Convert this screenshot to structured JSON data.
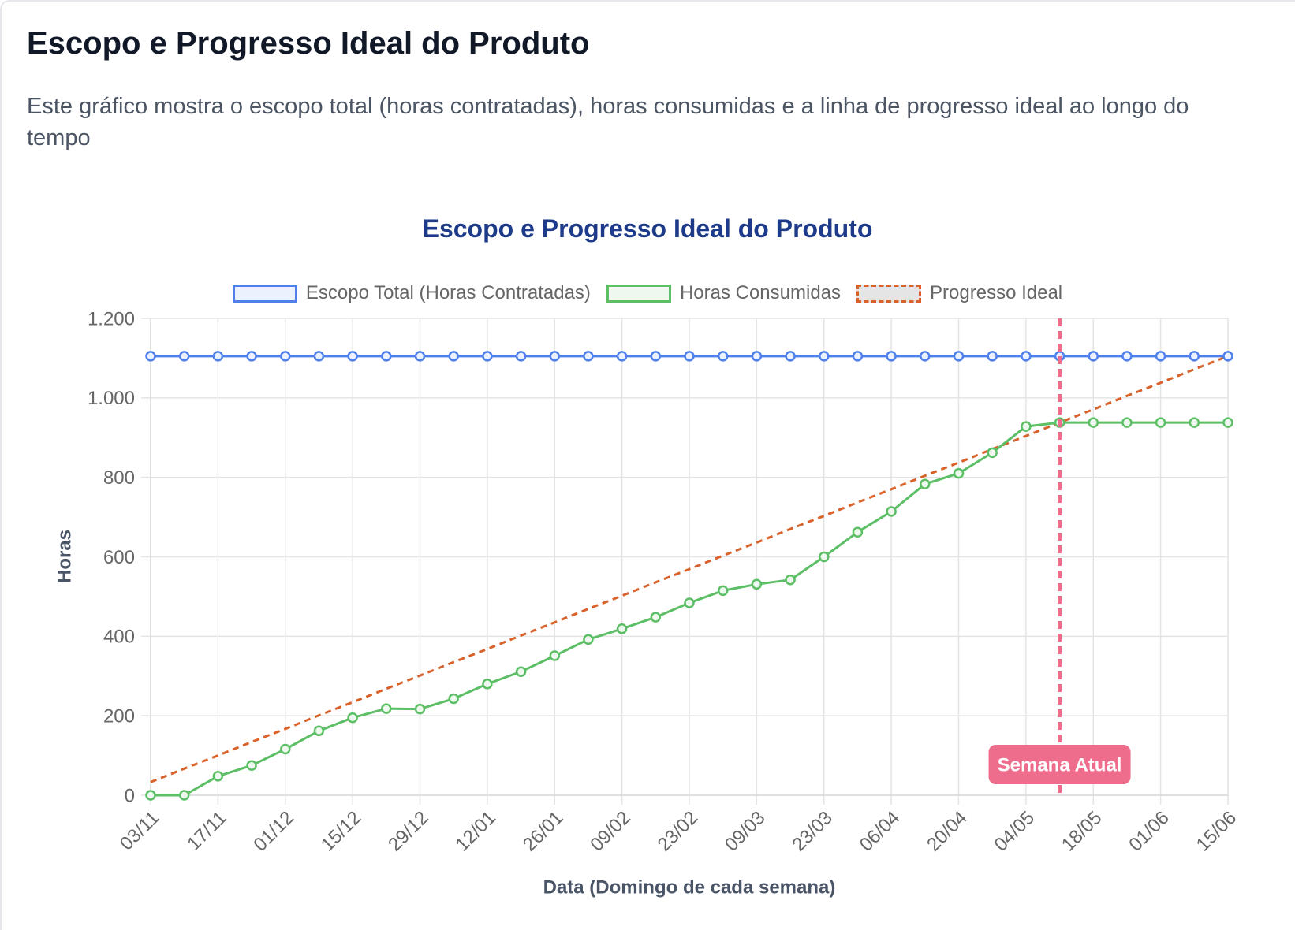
{
  "page": {
    "heading": "Escopo e Progresso Ideal do Produto",
    "description": "Este gráfico mostra o escopo total (horas contratadas), horas consumidas e a linha de progresso ideal ao longo do tempo"
  },
  "colors": {
    "page_background": "#ffffff",
    "heading": "#111827",
    "description": "#4b5563",
    "chart_title": "#1e3a8a"
  },
  "chart_data": {
    "type": "line",
    "title": "Escopo e Progresso Ideal do Produto",
    "xlabel": "Data (Domingo de cada semana)",
    "ylabel": "Horas",
    "ylim": [
      0,
      1200
    ],
    "y_ticks": [
      0,
      200,
      400,
      600,
      800,
      1000,
      1200
    ],
    "y_tick_labels": [
      "0",
      "200",
      "400",
      "600",
      "800",
      "1.000",
      "1.200"
    ],
    "categories": [
      "03/11",
      "",
      "17/11",
      "",
      "01/12",
      "",
      "15/12",
      "",
      "29/12",
      "",
      "12/01",
      "",
      "26/01",
      "",
      "09/02",
      "",
      "23/02",
      "",
      "09/03",
      "",
      "23/03",
      "",
      "06/04",
      "",
      "20/04",
      "",
      "04/05",
      "",
      "18/05",
      "",
      "01/06",
      "",
      "15/06"
    ],
    "legend": "top",
    "grid": true,
    "series": [
      {
        "name": "Escopo Total (Horas Contratadas)",
        "color": "#4f7fea",
        "fill": "#ebf1fd",
        "dashed": false,
        "markers": true,
        "values": [
          1105,
          1105,
          1105,
          1105,
          1105,
          1105,
          1105,
          1105,
          1105,
          1105,
          1105,
          1105,
          1105,
          1105,
          1105,
          1105,
          1105,
          1105,
          1105,
          1105,
          1105,
          1105,
          1105,
          1105,
          1105,
          1105,
          1105,
          1105,
          1105,
          1105,
          1105,
          1105,
          1105
        ]
      },
      {
        "name": "Horas Consumidas",
        "color": "#5cbf66",
        "fill": "#eef8ef",
        "dashed": false,
        "markers": true,
        "values": [
          0,
          0,
          48,
          75,
          116,
          162,
          195,
          218,
          217,
          243,
          280,
          311,
          351,
          392,
          419,
          448,
          484,
          515,
          531,
          542,
          600,
          662,
          714,
          783,
          810,
          862,
          928,
          938,
          938,
          938,
          938,
          938,
          938
        ]
      },
      {
        "name": "Progresso Ideal",
        "color": "#d9622b",
        "fill": "#e5e5e5",
        "dashed": true,
        "markers": false,
        "values": [
          33,
          67,
          100,
          134,
          167,
          201,
          234,
          268,
          301,
          335,
          368,
          402,
          435,
          469,
          502,
          536,
          569,
          603,
          636,
          670,
          703,
          737,
          770,
          804,
          837,
          871,
          904,
          938,
          971,
          1005,
          1038,
          1072,
          1105
        ]
      }
    ],
    "current_week_marker": {
      "label": "Semana Atual",
      "category_index": 27,
      "color": "#ee6d8c"
    }
  }
}
